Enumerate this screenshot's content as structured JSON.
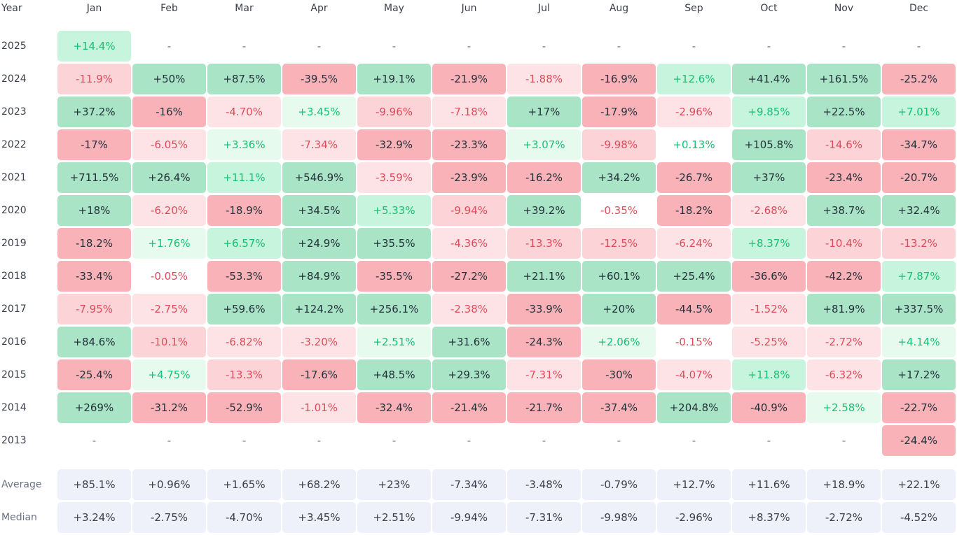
{
  "table": {
    "year_header": "Year",
    "months": [
      "Jan",
      "Feb",
      "Mar",
      "Apr",
      "May",
      "Jun",
      "Jul",
      "Aug",
      "Sep",
      "Oct",
      "Nov",
      "Dec"
    ],
    "rows": [
      {
        "year": "2025",
        "values": [
          "+14.4%",
          "-",
          "-",
          "-",
          "-",
          "-",
          "-",
          "-",
          "-",
          "-",
          "-",
          "-"
        ],
        "tones": [
          "lg",
          "na",
          "na",
          "na",
          "na",
          "na",
          "na",
          "na",
          "na",
          "na",
          "na",
          "na"
        ]
      },
      {
        "year": "2024",
        "values": [
          "-11.9%",
          "+50%",
          "+87.5%",
          "-39.5%",
          "+19.1%",
          "-21.9%",
          "-1.88%",
          "-16.9%",
          "+12.6%",
          "+41.4%",
          "+161.5%",
          "-25.2%"
        ],
        "tones": [
          "mr",
          "dg",
          "dg",
          "dr",
          "dg",
          "dr",
          "lr",
          "dr",
          "lg",
          "dg",
          "dg",
          "dr"
        ]
      },
      {
        "year": "2023",
        "values": [
          "+37.2%",
          "-16%",
          "-4.70%",
          "+3.45%",
          "-9.96%",
          "-7.18%",
          "+17%",
          "-17.9%",
          "-2.96%",
          "+9.85%",
          "+22.5%",
          "+7.01%"
        ],
        "tones": [
          "dg",
          "dr",
          "lr",
          "xg",
          "mr",
          "lr",
          "dg",
          "dr",
          "lr",
          "lg",
          "dg",
          "lg"
        ]
      },
      {
        "year": "2022",
        "values": [
          "-17%",
          "-6.05%",
          "+3.36%",
          "-7.34%",
          "-32.9%",
          "-23.3%",
          "+3.07%",
          "-9.98%",
          "+0.13%",
          "+105.8%",
          "-14.6%",
          "-34.7%"
        ],
        "tones": [
          "dr",
          "lr",
          "xg",
          "lr",
          "dr",
          "dr",
          "xg",
          "mr",
          "ng",
          "dg",
          "mr",
          "dr"
        ]
      },
      {
        "year": "2021",
        "values": [
          "+711.5%",
          "+26.4%",
          "+11.1%",
          "+546.9%",
          "-3.59%",
          "-23.9%",
          "-16.2%",
          "+34.2%",
          "-26.7%",
          "+37%",
          "-23.4%",
          "-20.7%"
        ],
        "tones": [
          "dg",
          "dg",
          "lg",
          "dg",
          "lr",
          "dr",
          "dr",
          "dg",
          "dr",
          "dg",
          "dr",
          "dr"
        ]
      },
      {
        "year": "2020",
        "values": [
          "+18%",
          "-6.20%",
          "-18.9%",
          "+34.5%",
          "+5.33%",
          "-9.94%",
          "+39.2%",
          "-0.35%",
          "-18.2%",
          "-2.68%",
          "+38.7%",
          "+32.4%"
        ],
        "tones": [
          "dg",
          "lr",
          "dr",
          "dg",
          "lg",
          "mr",
          "dg",
          "nr",
          "dr",
          "lr",
          "dg",
          "dg"
        ]
      },
      {
        "year": "2019",
        "values": [
          "-18.2%",
          "+1.76%",
          "+6.57%",
          "+24.9%",
          "+35.5%",
          "-4.36%",
          "-13.3%",
          "-12.5%",
          "-6.24%",
          "+8.37%",
          "-10.4%",
          "-13.2%"
        ],
        "tones": [
          "dr",
          "xg",
          "lg",
          "dg",
          "dg",
          "lr",
          "mr",
          "mr",
          "lr",
          "lg",
          "mr",
          "mr"
        ]
      },
      {
        "year": "2018",
        "values": [
          "-33.4%",
          "-0.05%",
          "-53.3%",
          "+84.9%",
          "-35.5%",
          "-27.2%",
          "+21.1%",
          "+60.1%",
          "+25.4%",
          "-36.6%",
          "-42.2%",
          "+7.87%"
        ],
        "tones": [
          "dr",
          "nr",
          "dr",
          "dg",
          "dr",
          "dr",
          "dg",
          "dg",
          "dg",
          "dr",
          "dr",
          "lg"
        ]
      },
      {
        "year": "2017",
        "values": [
          "-7.95%",
          "-2.75%",
          "+59.6%",
          "+124.2%",
          "+256.1%",
          "-2.38%",
          "-33.9%",
          "+20%",
          "-44.5%",
          "-1.52%",
          "+81.9%",
          "+337.5%"
        ],
        "tones": [
          "mr",
          "lr",
          "dg",
          "dg",
          "dg",
          "lr",
          "dr",
          "dg",
          "dr",
          "lr",
          "dg",
          "dg"
        ]
      },
      {
        "year": "2016",
        "values": [
          "+84.6%",
          "-10.1%",
          "-6.82%",
          "-3.20%",
          "+2.51%",
          "+31.6%",
          "-24.3%",
          "+2.06%",
          "-0.15%",
          "-5.25%",
          "-2.72%",
          "+4.14%"
        ],
        "tones": [
          "dg",
          "mr",
          "lr",
          "lr",
          "xg",
          "dg",
          "dr",
          "xg",
          "nr",
          "lr",
          "lr",
          "xg"
        ]
      },
      {
        "year": "2015",
        "values": [
          "-25.4%",
          "+4.75%",
          "-13.3%",
          "-17.6%",
          "+48.5%",
          "+29.3%",
          "-7.31%",
          "-30%",
          "-4.07%",
          "+11.8%",
          "-6.32%",
          "+17.2%"
        ],
        "tones": [
          "dr",
          "xg",
          "mr",
          "dr",
          "dg",
          "dg",
          "lr",
          "dr",
          "lr",
          "lg",
          "lr",
          "dg"
        ]
      },
      {
        "year": "2014",
        "values": [
          "+269%",
          "-31.2%",
          "-52.9%",
          "-1.01%",
          "-32.4%",
          "-21.4%",
          "-21.7%",
          "-37.4%",
          "+204.8%",
          "-40.9%",
          "+2.58%",
          "-22.7%"
        ],
        "tones": [
          "dg",
          "dr",
          "dr",
          "lr",
          "dr",
          "dr",
          "dr",
          "dr",
          "dg",
          "dr",
          "xg",
          "dr"
        ]
      },
      {
        "year": "2013",
        "values": [
          "-",
          "-",
          "-",
          "-",
          "-",
          "-",
          "-",
          "-",
          "-",
          "-",
          "-",
          "-24.4%"
        ],
        "tones": [
          "na",
          "na",
          "na",
          "na",
          "na",
          "na",
          "na",
          "na",
          "na",
          "na",
          "na",
          "dr"
        ]
      }
    ],
    "summary": [
      {
        "label": "Average",
        "values": [
          "+85.1%",
          "+0.96%",
          "+1.65%",
          "+68.2%",
          "+23%",
          "-7.34%",
          "-3.48%",
          "-0.79%",
          "+12.7%",
          "+11.6%",
          "+18.9%",
          "+22.1%"
        ]
      },
      {
        "label": "Median",
        "values": [
          "+3.24%",
          "-2.75%",
          "-4.70%",
          "+3.45%",
          "+2.51%",
          "-9.94%",
          "-7.31%",
          "-9.98%",
          "-2.96%",
          "+8.37%",
          "-2.72%",
          "-4.52%"
        ]
      }
    ]
  },
  "colors": {
    "positive_strong": "#a8e4c5",
    "positive_light": "#c6f4dc",
    "negative_strong": "#f9b3b8",
    "negative_light": "#fde3e5",
    "summary_bg": "#eef1f9"
  }
}
